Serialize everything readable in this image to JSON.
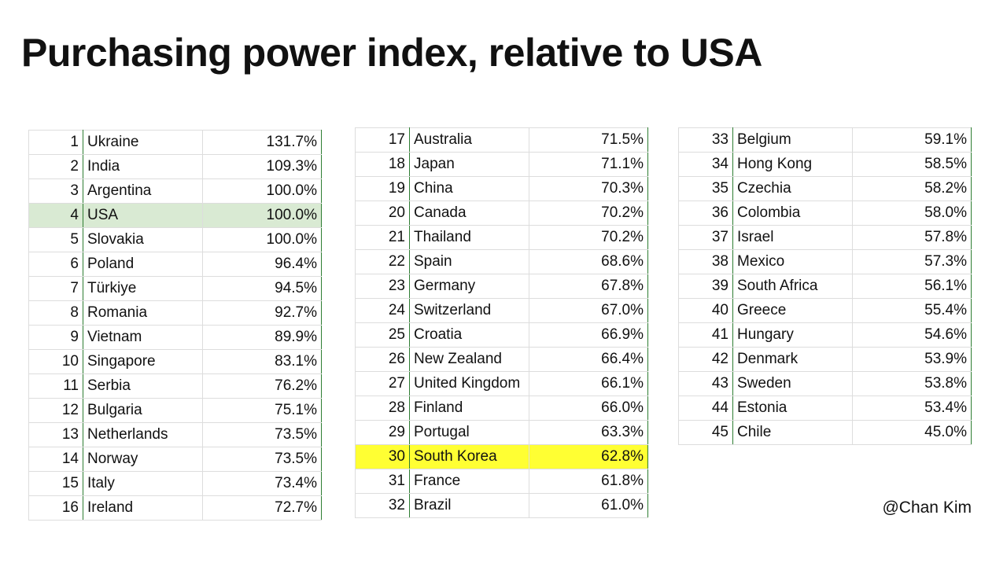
{
  "header": {
    "title": "Purchasing power index, relative to USA"
  },
  "tables": [
    {
      "rows": [
        [
          "1",
          "Ukraine",
          "131.7%"
        ],
        [
          "2",
          "India",
          "109.3%"
        ],
        [
          "3",
          "Argentina",
          "100.0%"
        ],
        [
          "4",
          "USA",
          "100.0%"
        ],
        [
          "5",
          "Slovakia",
          "100.0%"
        ],
        [
          "6",
          "Poland",
          "96.4%"
        ],
        [
          "7",
          "Türkiye",
          "94.5%"
        ],
        [
          "8",
          "Romania",
          "92.7%"
        ],
        [
          "9",
          "Vietnam",
          "89.9%"
        ],
        [
          "10",
          "Singapore",
          "83.1%"
        ],
        [
          "11",
          "Serbia",
          "76.2%"
        ],
        [
          "12",
          "Bulgaria",
          "75.1%"
        ],
        [
          "13",
          "Netherlands",
          "73.5%"
        ],
        [
          "14",
          "Norway",
          "73.5%"
        ],
        [
          "15",
          "Italy",
          "73.4%"
        ],
        [
          "16",
          "Ireland",
          "72.7%"
        ]
      ],
      "highlight": {
        "row": 3,
        "color": "#d9ead3"
      }
    },
    {
      "rows": [
        [
          "17",
          "Australia",
          "71.5%"
        ],
        [
          "18",
          "Japan",
          "71.1%"
        ],
        [
          "19",
          "China",
          "70.3%"
        ],
        [
          "20",
          "Canada",
          "70.2%"
        ],
        [
          "21",
          "Thailand",
          "70.2%"
        ],
        [
          "22",
          "Spain",
          "68.6%"
        ],
        [
          "23",
          "Germany",
          "67.8%"
        ],
        [
          "24",
          "Switzerland",
          "67.0%"
        ],
        [
          "25",
          "Croatia",
          "66.9%"
        ],
        [
          "26",
          "New Zealand",
          "66.4%"
        ],
        [
          "27",
          "United Kingdom",
          "66.1%"
        ],
        [
          "28",
          "Finland",
          "66.0%"
        ],
        [
          "29",
          "Portugal",
          "63.3%"
        ],
        [
          "30",
          "South Korea",
          "62.8%"
        ],
        [
          "31",
          "France",
          "61.8%"
        ],
        [
          "32",
          "Brazil",
          "61.0%"
        ]
      ],
      "highlight": {
        "row": 13,
        "color": "#ffff33"
      }
    },
    {
      "rows": [
        [
          "33",
          "Belgium",
          "59.1%"
        ],
        [
          "34",
          "Hong Kong",
          "58.5%"
        ],
        [
          "35",
          "Czechia",
          "58.2%"
        ],
        [
          "36",
          "Colombia",
          "58.0%"
        ],
        [
          "37",
          "Israel",
          "57.8%"
        ],
        [
          "38",
          "Mexico",
          "57.3%"
        ],
        [
          "39",
          "South Africa",
          "56.1%"
        ],
        [
          "40",
          "Greece",
          "55.4%"
        ],
        [
          "41",
          "Hungary",
          "54.6%"
        ],
        [
          "42",
          "Denmark",
          "53.9%"
        ],
        [
          "43",
          "Sweden",
          "53.8%"
        ],
        [
          "44",
          "Estonia",
          "53.4%"
        ],
        [
          "45",
          "Chile",
          "45.0%"
        ]
      ]
    }
  ],
  "footer": {
    "credit": "@Chan Kim"
  }
}
